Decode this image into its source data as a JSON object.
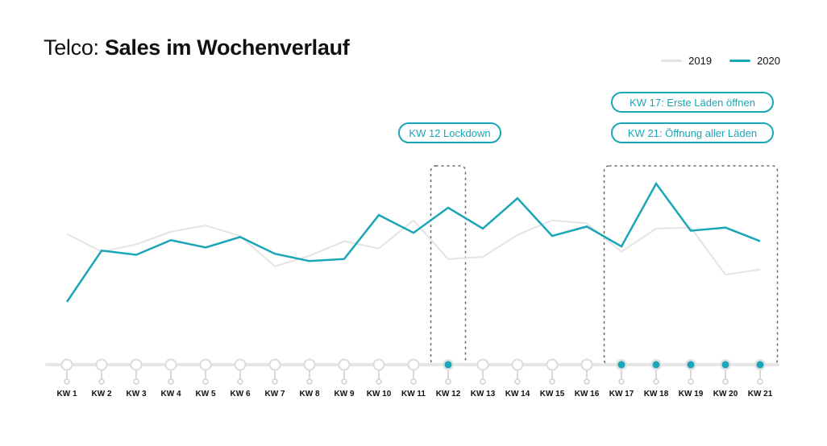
{
  "header": {
    "title_prefix": "Telco:",
    "title_main": "Sales im Wochenverlauf"
  },
  "colors": {
    "series_2019": "#e4e4e4",
    "series_2020": "#1aa6b7",
    "axis": "#e6e6e6",
    "highlight_box": "#666666"
  },
  "annotations": {
    "lockdown": "KW 12 Lockdown",
    "kw17": "KW 17: Erste Läden öffnen",
    "kw21": "KW 21: Öffnung aller Läden"
  },
  "chart_data": {
    "type": "line",
    "title": "Telco: Sales im Wochenverlauf",
    "xlabel": "",
    "ylabel": "",
    "categories": [
      "KW 1",
      "KW 2",
      "KW 3",
      "KW 4",
      "KW 5",
      "KW 6",
      "KW 7",
      "KW 8",
      "KW 9",
      "KW 10",
      "KW 11",
      "KW 12",
      "KW 13",
      "KW 14",
      "KW 15",
      "KW 16",
      "KW 17",
      "KW 18",
      "KW 19",
      "KW 20",
      "KW 21"
    ],
    "series": [
      {
        "name": "2019",
        "values": [
          125,
          108,
          115,
          127,
          133,
          123,
          94,
          104,
          118,
          111,
          138,
          101,
          103,
          124,
          138,
          135,
          108,
          130,
          131,
          86,
          91
        ]
      },
      {
        "name": "2020",
        "values": [
          60,
          109,
          105,
          119,
          112,
          122,
          106,
          99,
          101,
          143,
          126,
          150,
          130,
          159,
          123,
          132,
          113,
          173,
          128,
          131,
          118
        ]
      }
    ],
    "highlighted_categories": [
      "KW 12",
      "KW 17",
      "KW 18",
      "KW 19",
      "KW 20",
      "KW 21"
    ],
    "highlight_ranges": [
      [
        "KW 12",
        "KW 12"
      ],
      [
        "KW 17",
        "KW 21"
      ]
    ],
    "ylim": [
      0,
      200
    ],
    "grid": false,
    "legend_position": "top-right"
  }
}
